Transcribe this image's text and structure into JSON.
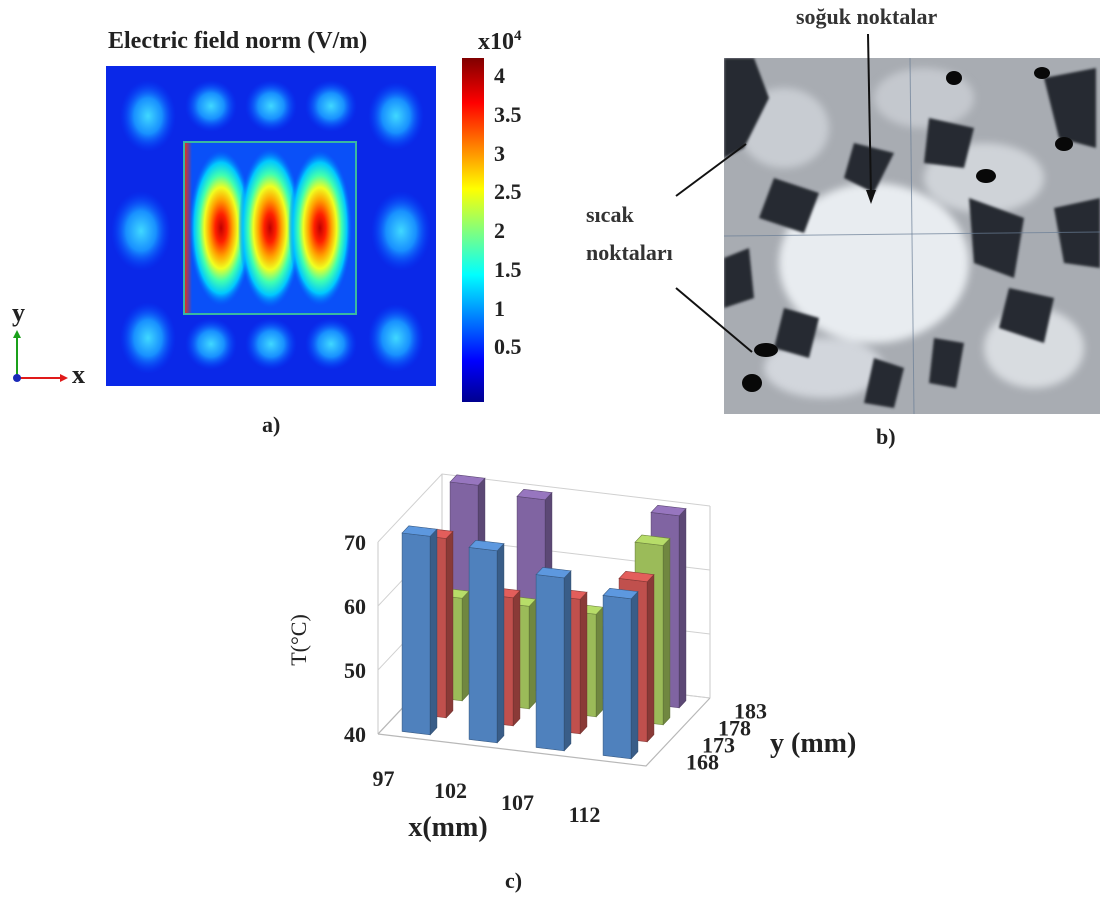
{
  "panel_a": {
    "title": "Electric field norm (V/m)",
    "colorbar_exponent": "x10",
    "colorbar_exponent_sup": "4",
    "colorbar_ticks": [
      "4",
      "3.5",
      "3",
      "2.5",
      "2",
      "1.5",
      "1",
      "0.5"
    ],
    "axis_y": "y",
    "axis_x": "x",
    "label": "a)"
  },
  "panel_b": {
    "label": "b)",
    "annotation_cold": "soğuk noktalar",
    "annotation_hot_line1": "sıcak",
    "annotation_hot_line2": "noktaları"
  },
  "panel_c": {
    "label": "c)"
  },
  "colors": {
    "blue": "#4f81bd",
    "red": "#c0504d",
    "green": "#9bbb59",
    "purple": "#8064a2"
  },
  "chart_data": [
    {
      "type": "heatmap",
      "title": "Electric field norm (V/m)",
      "colorbar_range": [
        0,
        4.2
      ],
      "colorbar_multiplier": "x10^4",
      "colorbar_ticks": [
        0.5,
        1,
        1.5,
        2,
        2.5,
        3,
        3.5,
        4
      ],
      "colormap": "jet",
      "hotspots_x10e4": [
        4.1,
        4.1,
        4.0
      ],
      "hotspot_count": 3
    },
    {
      "type": "bar",
      "subtype": "3d-column",
      "xlabel": "x(mm)",
      "ylabel": "y (mm)",
      "zlabel": "T(°C)",
      "x_categories": [
        "97",
        "102",
        "107",
        "112"
      ],
      "y_categories": [
        "168",
        "173",
        "178",
        "183"
      ],
      "zlim": [
        40,
        70
      ],
      "z_ticks": [
        "40",
        "50",
        "60",
        "70"
      ],
      "series": [
        {
          "y": "168",
          "color": "#4f81bd",
          "values": [
            71,
            70,
            67,
            65
          ]
        },
        {
          "y": "173",
          "color": "#c0504d",
          "values": [
            68,
            60,
            61,
            65
          ]
        },
        {
          "y": "178",
          "color": "#9bbb59",
          "values": [
            56,
            56,
            56,
            68
          ]
        },
        {
          "y": "183",
          "color": "#8064a2",
          "values": [
            71,
            70,
            50,
            70
          ]
        }
      ]
    }
  ]
}
